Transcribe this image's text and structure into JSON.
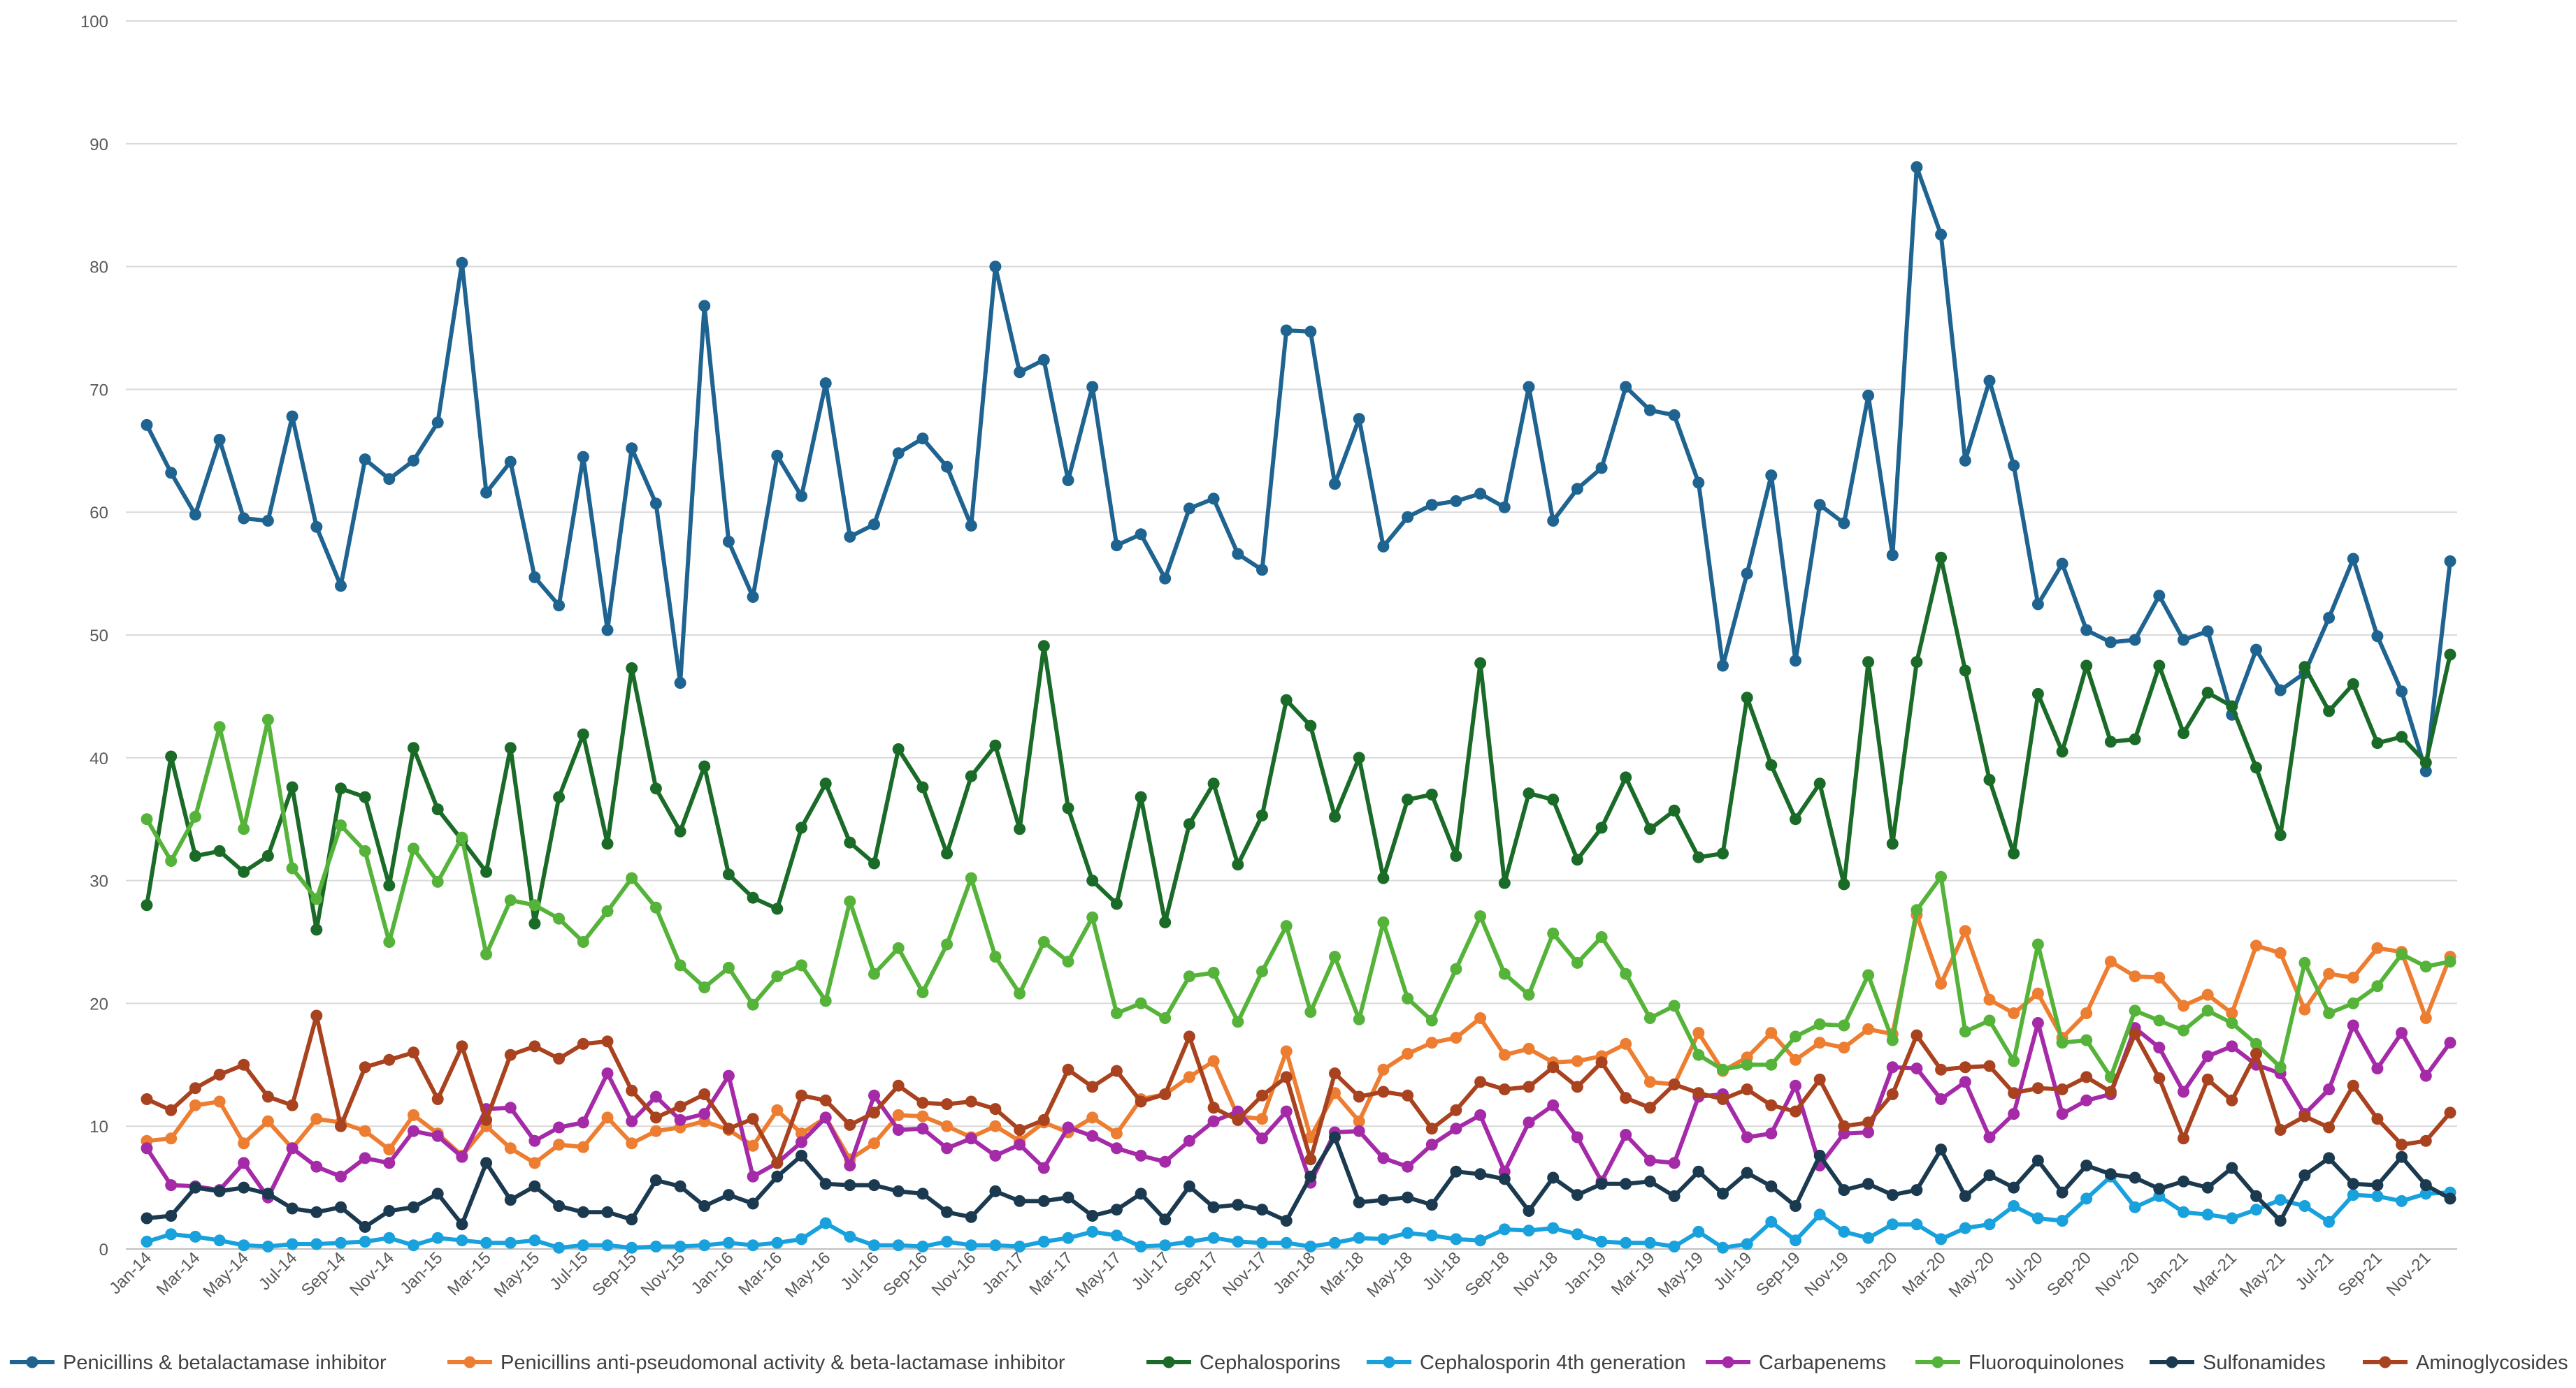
{
  "chart_data": {
    "type": "line",
    "ylim": [
      0,
      100
    ],
    "y_ticks": [
      0,
      10,
      20,
      30,
      40,
      50,
      60,
      70,
      80,
      90,
      100
    ],
    "grid": true,
    "legend_position": "bottom",
    "x": [
      "Jan-14",
      "Feb-14",
      "Mar-14",
      "Apr-14",
      "May-14",
      "Jun-14",
      "Jul-14",
      "Aug-14",
      "Sep-14",
      "Oct-14",
      "Nov-14",
      "Dec-14",
      "Jan-15",
      "Feb-15",
      "Mar-15",
      "Apr-15",
      "May-15",
      "Jun-15",
      "Jul-15",
      "Aug-15",
      "Sep-15",
      "Oct-15",
      "Nov-15",
      "Dec-15",
      "Jan-16",
      "Feb-16",
      "Mar-16",
      "Apr-16",
      "May-16",
      "Jun-16",
      "Jul-16",
      "Aug-16",
      "Sep-16",
      "Oct-16",
      "Nov-16",
      "Dec-16",
      "Jan-17",
      "Feb-17",
      "Mar-17",
      "Apr-17",
      "May-17",
      "Jun-17",
      "Jul-17",
      "Aug-17",
      "Sep-17",
      "Oct-17",
      "Nov-17",
      "Dec-17",
      "Jan-18",
      "Feb-18",
      "Mar-18",
      "Apr-18",
      "May-18",
      "Jun-18",
      "Jul-18",
      "Aug-18",
      "Sep-18",
      "Oct-18",
      "Nov-18",
      "Dec-18",
      "Jan-19",
      "Feb-19",
      "Mar-19",
      "Apr-19",
      "May-19",
      "Jun-19",
      "Jul-19",
      "Aug-19",
      "Sep-19",
      "Oct-19",
      "Nov-19",
      "Dec-19",
      "Jan-20",
      "Feb-20",
      "Mar-20",
      "Apr-20",
      "May-20",
      "Jun-20",
      "Jul-20",
      "Aug-20",
      "Sep-20",
      "Oct-20",
      "Nov-20",
      "Dec-20",
      "Jan-21",
      "Feb-21",
      "Mar-21",
      "Apr-21",
      "May-21",
      "Jun-21",
      "Jul-21",
      "Aug-21",
      "Sep-21",
      "Oct-21",
      "Nov-21",
      "Dec-21"
    ],
    "x_tick_labels": [
      "Jan-14",
      "Mar-14",
      "May-14",
      "Jul-14",
      "Sep-14",
      "Nov-14",
      "Jan-15",
      "Mar-15",
      "May-15",
      "Jul-15",
      "Sep-15",
      "Nov-15",
      "Jan-16",
      "Mar-16",
      "May-16",
      "Jul-16",
      "Sep-16",
      "Nov-16",
      "Jan-17",
      "Mar-17",
      "May-17",
      "Jul-17",
      "Sep-17",
      "Nov-17",
      "Jan-18",
      "Mar-18",
      "May-18",
      "Jul-18",
      "Sep-18",
      "Nov-18",
      "Jan-19",
      "Mar-19",
      "May-19",
      "Jul-19",
      "Sep-19",
      "Nov-19",
      "Jan-20",
      "Mar-20",
      "May-20",
      "Jul-20",
      "Sep-20",
      "Nov-20",
      "Jan-21",
      "Mar-21",
      "May-21",
      "Jul-21",
      "Sep-21",
      "Nov-21"
    ],
    "series": [
      {
        "name": "Penicillins & betalactamase inhibitor",
        "color": "#1f6391",
        "values": [
          67.1,
          63.2,
          59.8,
          65.9,
          59.5,
          59.3,
          67.8,
          58.8,
          54.0,
          64.3,
          62.7,
          64.2,
          67.3,
          80.3,
          61.6,
          64.1,
          54.7,
          52.4,
          64.5,
          50.4,
          65.2,
          60.7,
          46.1,
          76.8,
          57.6,
          53.1,
          64.6,
          61.3,
          70.5,
          58.0,
          59.0,
          64.8,
          66.0,
          63.7,
          58.9,
          80.0,
          71.4,
          72.4,
          62.6,
          70.2,
          57.3,
          58.2,
          54.6,
          60.3,
          61.1,
          56.6,
          55.3,
          74.8,
          74.7,
          62.3,
          67.6,
          57.2,
          59.6,
          60.6,
          60.9,
          61.5,
          60.4,
          70.2,
          59.3,
          61.9,
          63.6,
          70.2,
          68.3,
          67.9,
          62.4,
          47.5,
          55.0,
          63.0,
          47.9,
          60.6,
          59.1,
          69.5,
          56.5,
          88.1,
          82.6,
          64.2,
          70.7,
          63.8,
          52.5,
          55.8,
          50.4,
          49.4,
          49.6,
          53.2,
          49.6,
          50.3,
          43.5,
          48.8,
          45.5,
          46.9,
          51.4,
          56.2,
          49.9,
          45.4,
          38.9,
          56.0
        ]
      },
      {
        "name": "Penicillins anti-pseudomonal activity & beta-lactamase inhibitor",
        "color": "#ed7d31",
        "values": [
          8.8,
          9.0,
          11.7,
          12.0,
          8.6,
          10.4,
          8.2,
          10.6,
          10.3,
          9.6,
          8.1,
          10.9,
          9.4,
          7.6,
          10.0,
          8.2,
          7.0,
          8.5,
          8.3,
          10.7,
          8.6,
          9.6,
          9.9,
          10.4,
          9.7,
          8.4,
          11.3,
          9.4,
          10.7,
          7.3,
          8.6,
          10.9,
          10.8,
          10.0,
          9.1,
          10.0,
          8.8,
          10.3,
          9.5,
          10.7,
          9.4,
          12.2,
          12.6,
          14.0,
          15.3,
          10.8,
          10.6,
          16.1,
          9.1,
          12.7,
          10.4,
          14.6,
          15.9,
          16.8,
          17.2,
          18.8,
          15.8,
          16.3,
          15.2,
          15.3,
          15.7,
          16.7,
          13.6,
          13.4,
          17.6,
          14.5,
          15.6,
          17.6,
          15.4,
          16.8,
          16.4,
          17.9,
          17.5,
          27.2,
          21.6,
          25.9,
          20.3,
          19.2,
          20.8,
          17.2,
          19.2,
          23.4,
          22.2,
          22.1,
          19.8,
          20.7,
          19.2,
          24.7,
          24.1,
          19.5,
          22.4,
          22.1,
          24.5,
          24.2,
          18.8,
          23.8
        ]
      },
      {
        "name": "Cephalosporins",
        "color": "#1a6b28",
        "values": [
          28.0,
          40.1,
          32.0,
          32.4,
          30.7,
          32.0,
          37.6,
          26.0,
          37.5,
          36.8,
          29.6,
          40.8,
          35.8,
          33.3,
          30.7,
          40.8,
          26.5,
          36.8,
          41.9,
          33.0,
          47.3,
          37.5,
          34.0,
          39.3,
          30.5,
          28.6,
          27.7,
          34.3,
          37.9,
          33.1,
          31.4,
          40.7,
          37.6,
          32.2,
          38.5,
          41.0,
          34.2,
          49.1,
          35.9,
          30.0,
          28.1,
          36.8,
          26.6,
          34.6,
          37.9,
          31.3,
          35.3,
          44.7,
          42.6,
          35.2,
          40.0,
          30.2,
          36.6,
          37.0,
          32.0,
          47.7,
          29.8,
          37.1,
          36.6,
          31.7,
          34.3,
          38.4,
          34.2,
          35.7,
          31.9,
          32.2,
          44.9,
          39.4,
          35.0,
          37.9,
          29.7,
          47.8,
          33.0,
          47.8,
          56.3,
          47.1,
          38.2,
          32.2,
          45.2,
          40.5,
          47.5,
          41.3,
          41.5,
          47.5,
          42.0,
          45.3,
          44.2,
          39.2,
          33.7,
          47.4,
          43.8,
          46.0,
          41.2,
          41.7,
          39.6,
          48.4
        ]
      },
      {
        "name": "Cephalosporin 4th generation",
        "color": "#18a1dc",
        "values": [
          0.6,
          1.2,
          1.0,
          0.7,
          0.3,
          0.2,
          0.4,
          0.4,
          0.5,
          0.6,
          0.9,
          0.3,
          0.9,
          0.7,
          0.5,
          0.5,
          0.7,
          0.1,
          0.3,
          0.3,
          0.1,
          0.2,
          0.2,
          0.3,
          0.5,
          0.3,
          0.5,
          0.8,
          2.1,
          1.0,
          0.3,
          0.3,
          0.2,
          0.6,
          0.3,
          0.3,
          0.2,
          0.6,
          0.9,
          1.4,
          1.1,
          0.2,
          0.3,
          0.6,
          0.9,
          0.6,
          0.5,
          0.5,
          0.2,
          0.5,
          0.9,
          0.8,
          1.3,
          1.1,
          0.8,
          0.7,
          1.6,
          1.5,
          1.7,
          1.2,
          0.6,
          0.5,
          0.5,
          0.2,
          1.4,
          0.1,
          0.4,
          2.2,
          0.7,
          2.8,
          1.4,
          0.9,
          2.0,
          2.0,
          0.8,
          1.7,
          2.0,
          3.5,
          2.5,
          2.3,
          4.1,
          5.9,
          3.4,
          4.3,
          3.0,
          2.8,
          2.5,
          3.2,
          4.0,
          3.5,
          2.2,
          4.4,
          4.3,
          3.9,
          4.5,
          4.6
        ]
      },
      {
        "name": "Carbapenems",
        "color": "#a52aa8",
        "values": [
          8.2,
          5.2,
          5.1,
          4.8,
          7.0,
          4.2,
          8.2,
          6.7,
          5.9,
          7.4,
          7.0,
          9.6,
          9.2,
          7.5,
          11.4,
          11.5,
          8.8,
          9.9,
          10.3,
          14.3,
          10.4,
          12.4,
          10.5,
          11.0,
          14.1,
          5.9,
          7.0,
          8.7,
          10.7,
          6.8,
          12.5,
          9.7,
          9.8,
          8.2,
          9.0,
          7.6,
          8.5,
          6.6,
          9.9,
          9.2,
          8.2,
          7.6,
          7.1,
          8.8,
          10.4,
          11.2,
          9.0,
          11.2,
          5.4,
          9.5,
          9.6,
          7.4,
          6.7,
          8.5,
          9.8,
          10.9,
          6.3,
          10.3,
          11.7,
          9.1,
          5.5,
          9.3,
          7.2,
          7.0,
          12.4,
          12.6,
          9.1,
          9.4,
          13.3,
          6.8,
          9.4,
          9.5,
          14.8,
          14.7,
          12.2,
          13.6,
          9.1,
          11.0,
          18.4,
          11.0,
          12.1,
          12.6,
          18.0,
          16.4,
          12.8,
          15.7,
          16.5,
          15.0,
          14.3,
          11.0,
          13.0,
          18.2,
          14.7,
          17.6,
          14.1,
          16.8
        ]
      },
      {
        "name": "Fluoroquinolones",
        "color": "#55b33a",
        "values": [
          35.0,
          31.6,
          35.2,
          42.5,
          34.2,
          43.1,
          31.0,
          28.5,
          34.5,
          32.4,
          25.0,
          32.6,
          29.9,
          33.5,
          24.0,
          28.4,
          28.0,
          26.9,
          25.0,
          27.5,
          30.2,
          27.8,
          23.1,
          21.3,
          22.9,
          19.9,
          22.2,
          23.1,
          20.2,
          28.3,
          22.4,
          24.5,
          20.9,
          24.8,
          30.2,
          23.8,
          20.8,
          25.0,
          23.4,
          27.0,
          19.2,
          20.0,
          18.8,
          22.2,
          22.5,
          18.5,
          22.6,
          26.3,
          19.3,
          23.8,
          18.7,
          26.6,
          20.4,
          18.6,
          22.8,
          27.1,
          22.4,
          20.7,
          25.7,
          23.3,
          25.4,
          22.4,
          18.8,
          19.8,
          15.8,
          14.6,
          15.0,
          15.0,
          17.3,
          18.3,
          18.2,
          22.3,
          17.0,
          27.6,
          30.3,
          17.7,
          18.6,
          15.3,
          24.8,
          16.8,
          17.0,
          14.0,
          19.4,
          18.6,
          17.8,
          19.4,
          18.4,
          16.7,
          14.8,
          23.3,
          19.2,
          20.0,
          21.4,
          24.0,
          23.0,
          23.4
        ]
      },
      {
        "name": "Sulfonamides",
        "color": "#1b3a50",
        "values": [
          2.5,
          2.7,
          5.0,
          4.7,
          5.0,
          4.5,
          3.3,
          3.0,
          3.4,
          1.8,
          3.1,
          3.4,
          4.5,
          2.0,
          7.0,
          4.0,
          5.1,
          3.5,
          3.0,
          3.0,
          2.4,
          5.6,
          5.1,
          3.5,
          4.4,
          3.7,
          5.9,
          7.6,
          5.3,
          5.2,
          5.2,
          4.7,
          4.5,
          3.0,
          2.6,
          4.7,
          3.9,
          3.9,
          4.2,
          2.7,
          3.2,
          4.5,
          2.4,
          5.1,
          3.4,
          3.6,
          3.2,
          2.3,
          5.9,
          9.1,
          3.8,
          4.0,
          4.2,
          3.6,
          6.3,
          6.1,
          5.7,
          3.1,
          5.8,
          4.4,
          5.3,
          5.3,
          5.5,
          4.3,
          6.3,
          4.5,
          6.2,
          5.1,
          3.5,
          7.6,
          4.8,
          5.3,
          4.4,
          4.8,
          8.1,
          4.3,
          6.0,
          5.0,
          7.2,
          4.6,
          6.8,
          6.1,
          5.8,
          4.9,
          5.5,
          5.0,
          6.6,
          4.3,
          2.3,
          6.0,
          7.4,
          5.3,
          5.2,
          7.5,
          5.2,
          4.1
        ]
      },
      {
        "name": "Aminoglycosides",
        "color": "#a9421e",
        "values": [
          12.2,
          11.3,
          13.1,
          14.2,
          15.0,
          12.4,
          11.7,
          19.0,
          10.0,
          14.8,
          15.4,
          16.0,
          12.2,
          16.5,
          10.5,
          15.8,
          16.5,
          15.5,
          16.7,
          16.9,
          12.9,
          10.7,
          11.6,
          12.6,
          9.8,
          10.6,
          7.0,
          12.5,
          12.1,
          10.1,
          11.1,
          13.3,
          11.9,
          11.8,
          12.0,
          11.4,
          9.7,
          10.5,
          14.6,
          13.2,
          14.5,
          12.0,
          12.6,
          17.3,
          11.5,
          10.5,
          12.5,
          14.0,
          7.3,
          14.3,
          12.4,
          12.8,
          12.5,
          9.8,
          11.3,
          13.6,
          13.0,
          13.2,
          14.8,
          13.2,
          15.2,
          12.3,
          11.5,
          13.4,
          12.7,
          12.2,
          13.0,
          11.7,
          11.2,
          13.8,
          10.0,
          10.3,
          12.6,
          17.4,
          14.6,
          14.8,
          14.9,
          12.7,
          13.1,
          13.0,
          14.0,
          12.8,
          17.5,
          13.9,
          9.0,
          13.8,
          12.1,
          15.9,
          9.7,
          10.8,
          9.9,
          13.3,
          10.6,
          8.5,
          8.8,
          11.1
        ]
      }
    ]
  }
}
